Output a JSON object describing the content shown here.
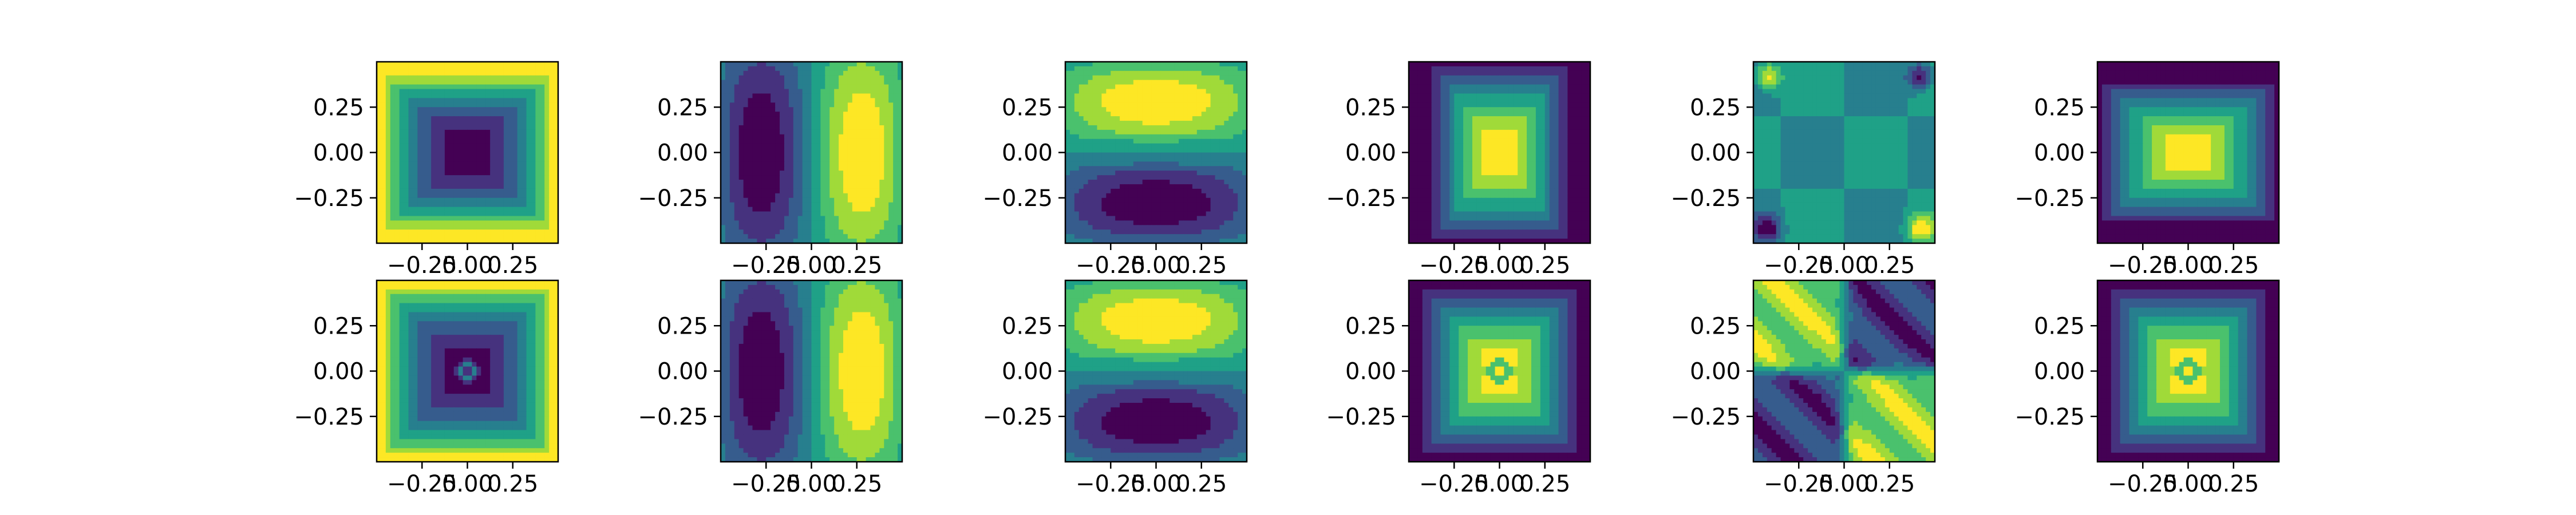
{
  "figure": {
    "background": "#ffffff",
    "rows": 2,
    "cols": 6
  },
  "chart_data": {
    "type": "heatmap",
    "subtype": "filled-contour-grid",
    "colormap": "viridis",
    "colormap_stops": [
      "#440154",
      "#46327e",
      "#365c8d",
      "#277f8e",
      "#1fa187",
      "#4ac16d",
      "#a0da39",
      "#fde725"
    ],
    "grid": false,
    "legend": "none",
    "xlim": [
      -0.5,
      0.5
    ],
    "ylim": [
      -0.5,
      0.5
    ],
    "x_ticks": [
      {
        "value": -0.25,
        "label": "−0.25"
      },
      {
        "value": 0.0,
        "label": "0.00"
      },
      {
        "value": 0.25,
        "label": "0.25"
      }
    ],
    "y_ticks": [
      {
        "value": 0.25,
        "label": "0.25"
      },
      {
        "value": 0.0,
        "label": "0.00"
      },
      {
        "value": -0.25,
        "label": "−0.25"
      }
    ],
    "panels": [
      {
        "row": 0,
        "col": 0,
        "pattern": "center-low"
      },
      {
        "row": 0,
        "col": 1,
        "pattern": "left-low-right-high"
      },
      {
        "row": 0,
        "col": 2,
        "pattern": "top-high-bottom-low"
      },
      {
        "row": 0,
        "col": 3,
        "pattern": "center-high"
      },
      {
        "row": 0,
        "col": 4,
        "pattern": "corner-extrema"
      },
      {
        "row": 0,
        "col": 5,
        "pattern": "center-high-horizontal"
      },
      {
        "row": 1,
        "col": 0,
        "pattern": "center-low-with-ring"
      },
      {
        "row": 1,
        "col": 1,
        "pattern": "left-low-right-high"
      },
      {
        "row": 1,
        "col": 2,
        "pattern": "top-high-bottom-low"
      },
      {
        "row": 1,
        "col": 3,
        "pattern": "center-high-with-ring"
      },
      {
        "row": 1,
        "col": 4,
        "pattern": "diagonal-quadrants"
      },
      {
        "row": 1,
        "col": 5,
        "pattern": "center-high-with-ring"
      }
    ]
  }
}
